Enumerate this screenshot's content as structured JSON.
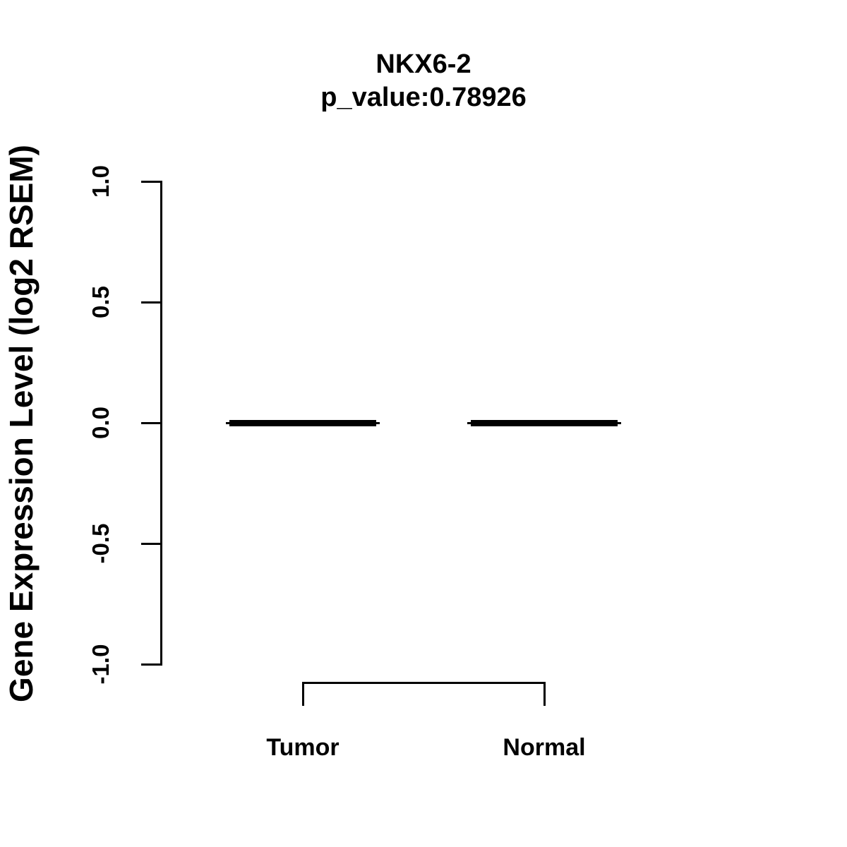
{
  "title": "NKX6-2",
  "subtitle": "p_value:0.78926",
  "chart_data": {
    "type": "boxplot",
    "title": "NKX6-2",
    "subtitle": "p_value:0.78926",
    "xlabel": "",
    "ylabel": "Gene Expression Level (log2 RSEM)",
    "ylim": [
      -1.0,
      1.0
    ],
    "yticks": [
      {
        "value": 1.0,
        "label": "1.0"
      },
      {
        "value": 0.5,
        "label": "0.5"
      },
      {
        "value": 0.0,
        "label": "0.0"
      },
      {
        "value": -0.5,
        "label": "-0.5"
      },
      {
        "value": -1.0,
        "label": "-1.0"
      }
    ],
    "categories": [
      "Tumor",
      "Normal"
    ],
    "series": [
      {
        "name": "Tumor",
        "median": 0.0,
        "q1": 0.0,
        "q3": 0.0,
        "whisker_low": 0.0,
        "whisker_high": 0.0
      },
      {
        "name": "Normal",
        "median": 0.0,
        "q1": 0.0,
        "q3": 0.0,
        "whisker_low": 0.0,
        "whisker_high": 0.0
      }
    ],
    "grid": false,
    "legend": null,
    "annotations": [
      {
        "type": "comparison-bracket",
        "from": "Tumor",
        "to": "Normal"
      }
    ],
    "colors": {
      "foreground": "#000000",
      "background": "#ffffff"
    }
  }
}
